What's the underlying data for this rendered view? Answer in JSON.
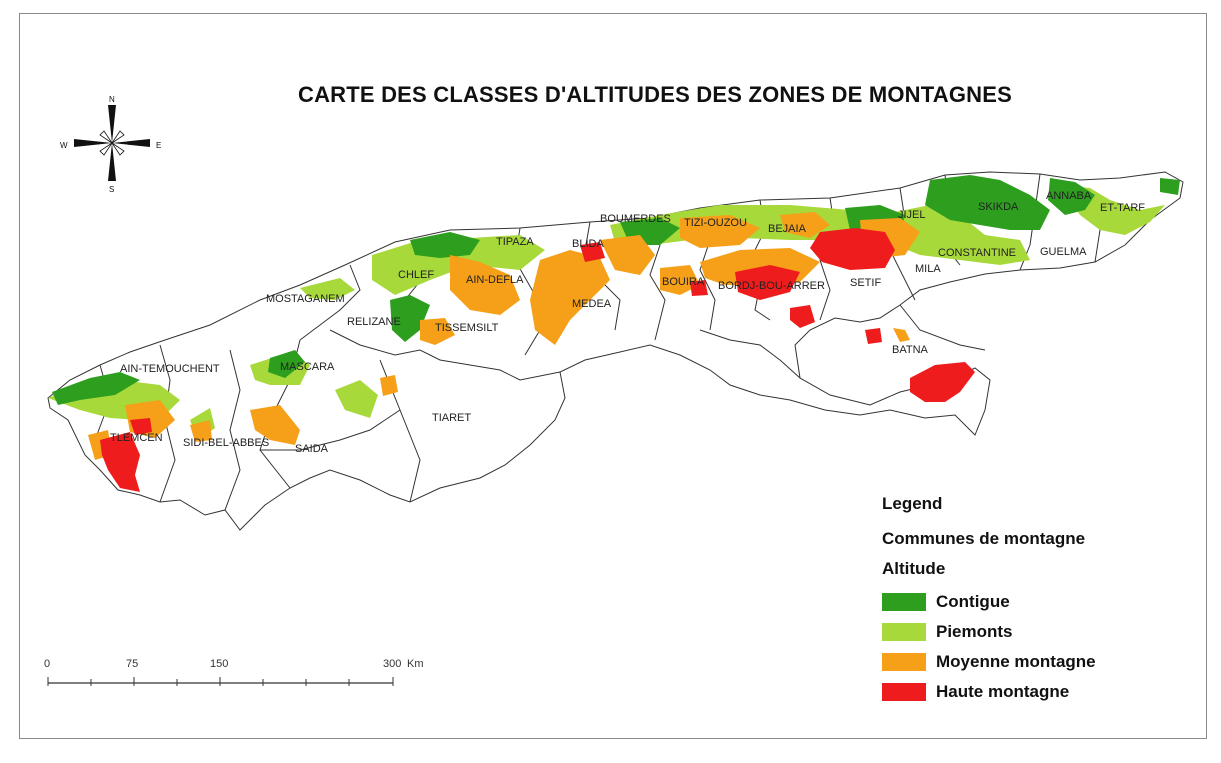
{
  "title": "CARTE DES CLASSES D'ALTITUDES DES ZONES DE MONTAGNES",
  "compass": {
    "n": "N",
    "s": "S",
    "e": "E",
    "w": "W"
  },
  "scale_bar": {
    "ticks": [
      "0",
      "75",
      "150",
      "300"
    ],
    "unit": "Km"
  },
  "regions": [
    "MOSTAGANEM",
    "CHLEF",
    "TIPAZA",
    "BLIDA",
    "BOUMERDES",
    "TIZI-OUZOU",
    "BEJAIA",
    "JIJEL",
    "SKIKDA",
    "ANNABA",
    "ET-TARF",
    "AIN-DEFLA",
    "MEDEA",
    "BOUIRA",
    "BORDJ-BOU-ARRER",
    "SETIF",
    "MILA",
    "CONSTANTINE",
    "GUELMA",
    "RELIZANE",
    "TISSEMSILT",
    "BATNA",
    "AIN-TEMOUCHENT",
    "MASCARA",
    "TIARET",
    "TLEMCEN",
    "SIDI-BEL-ABBES",
    "SAIDA"
  ],
  "legend": {
    "title": "Legend",
    "layer": "Communes de montagne",
    "field": "Altitude",
    "classes": [
      {
        "label": "Contigue",
        "color": "#2e9e1f"
      },
      {
        "label": "Piemonts",
        "color": "#a8d93a"
      },
      {
        "label": "Moyenne montagne",
        "color": "#f5a018"
      },
      {
        "label": "Haute montagne",
        "color": "#ee1c1c"
      }
    ]
  }
}
